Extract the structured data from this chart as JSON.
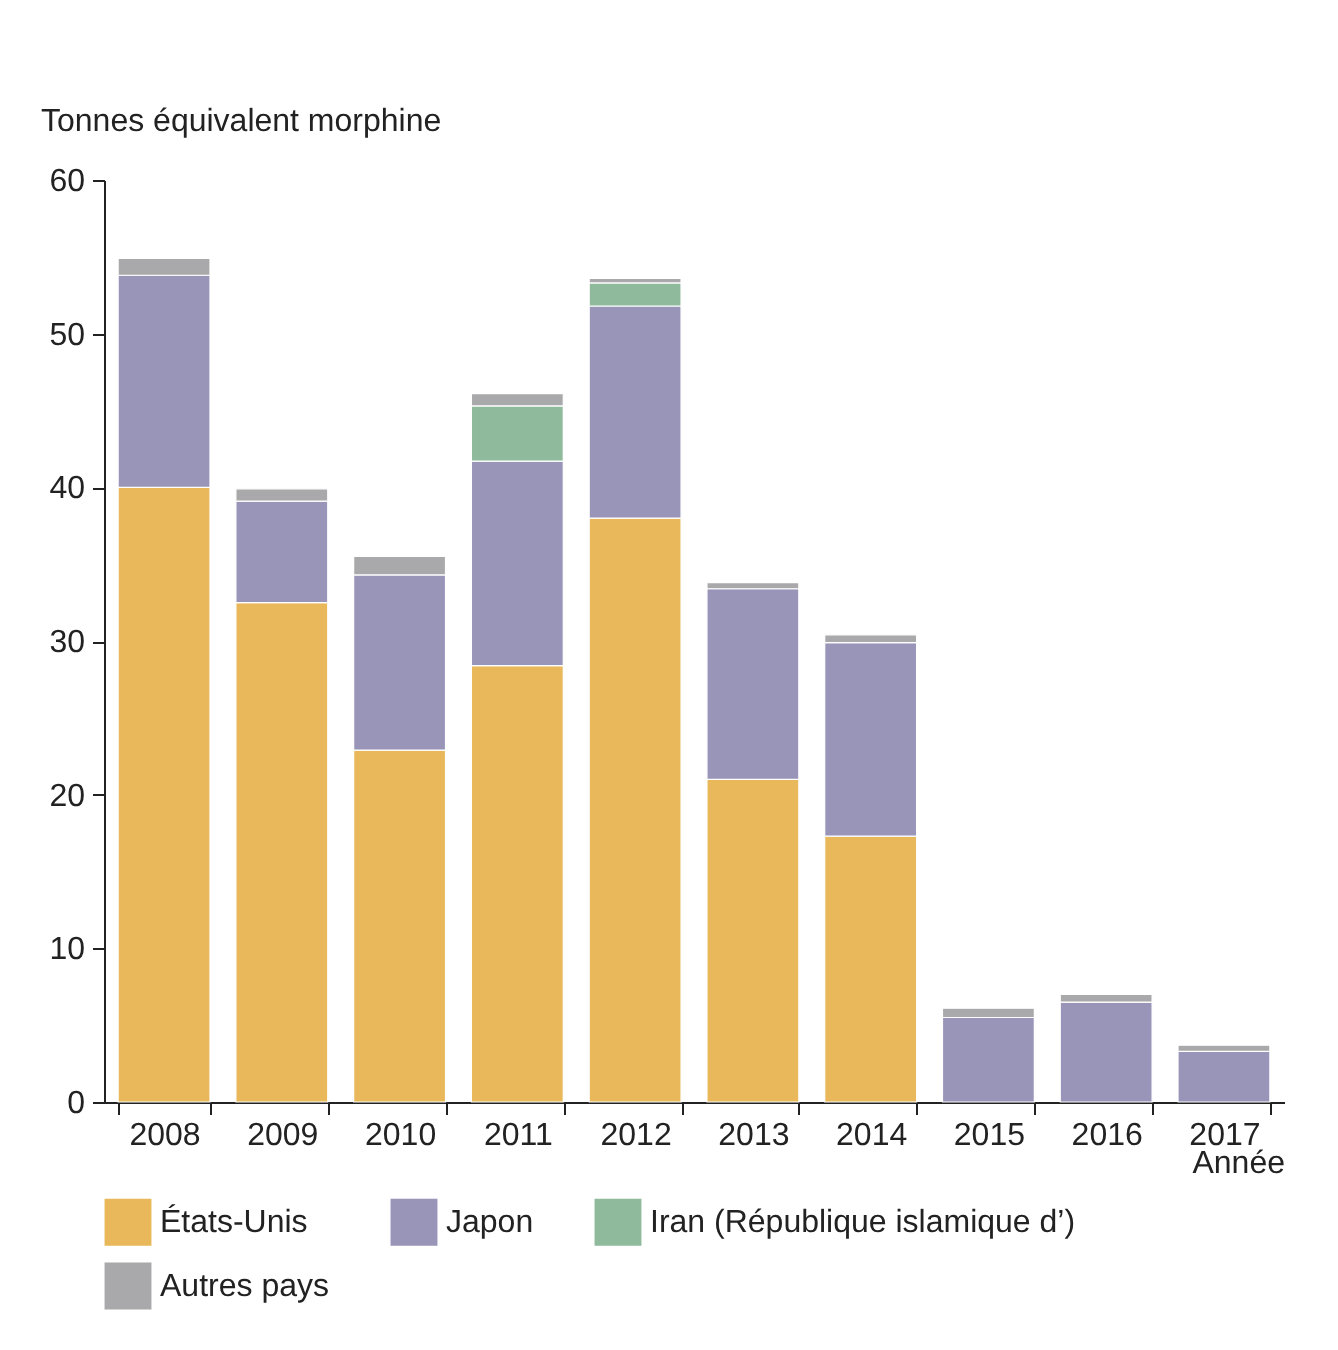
{
  "chart_data": {
    "type": "bar",
    "stacked": true,
    "ylabel": "Tonnes équivalent morphine",
    "xlabel": "Année",
    "categories": [
      "2008",
      "2009",
      "2010",
      "2011",
      "2012",
      "2013",
      "2014",
      "2015",
      "2016",
      "2017"
    ],
    "series": [
      {
        "name": "États-Unis",
        "color": "#e8b85a",
        "values": [
          40,
          32.5,
          22.9,
          28.4,
          38,
          21,
          17.3,
          null,
          null,
          null
        ]
      },
      {
        "name": "Japon",
        "color": "#9895b9",
        "values": [
          13.8,
          6.6,
          11.4,
          13.3,
          13.8,
          12.4,
          12.6,
          5.5,
          6.5,
          3.3
        ]
      },
      {
        "name": "Iran (République islamique d’)",
        "color": "#90ba9c",
        "values": [
          null,
          null,
          null,
          3.6,
          1.5,
          null,
          null,
          null,
          null,
          null
        ]
      },
      {
        "name": "Autres pays",
        "color": "#a9a9ab",
        "values": [
          1.1,
          0.8,
          1.2,
          0.8,
          0.3,
          0.4,
          0.5,
          0.6,
          0.5,
          0.4
        ]
      }
    ],
    "ylim": [
      0,
      60
    ],
    "yticks": [
      0,
      10,
      20,
      30,
      40,
      50,
      60
    ],
    "grid": false,
    "legend": "bottom"
  }
}
